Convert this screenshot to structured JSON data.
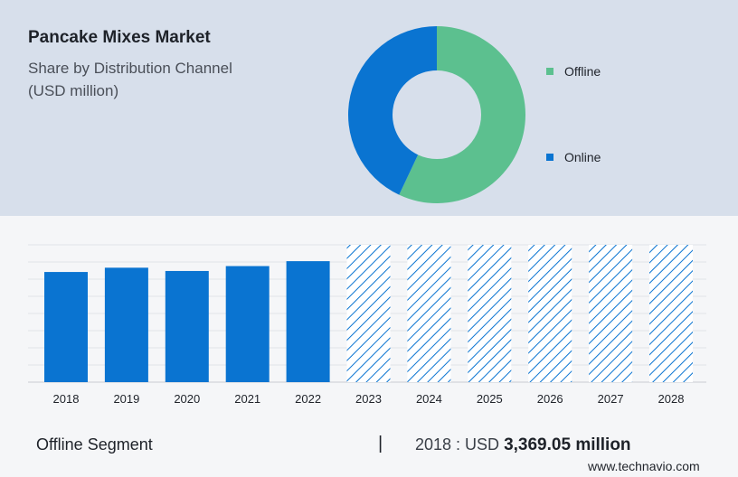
{
  "chart_data": [
    {
      "type": "pie",
      "title": "Pancake Mixes Market",
      "subtitle": "Share by Distribution Channel",
      "unit_line": "(USD million)",
      "slices": [
        {
          "name": "Offline",
          "value": 57,
          "color": "#5cc08f"
        },
        {
          "name": "Online",
          "value": 43,
          "color": "#0a74d1"
        }
      ],
      "legend_position": "right"
    },
    {
      "type": "bar",
      "categories": [
        "2018",
        "2019",
        "2020",
        "2021",
        "2022",
        "2023",
        "2024",
        "2025",
        "2026",
        "2027",
        "2028"
      ],
      "values": [
        3369.05,
        3500,
        3400,
        3550,
        3700,
        null,
        null,
        null,
        null,
        null,
        null
      ],
      "forecast_categories": [
        "2023",
        "2024",
        "2025",
        "2026",
        "2027",
        "2028"
      ],
      "ylim": [
        0,
        4200
      ],
      "grid": true,
      "bar_color": "#0a74d1",
      "forecast_style": "hatched"
    }
  ],
  "footer": {
    "segment": "Offline Segment",
    "separator": "|",
    "year_label": "2018 : USD",
    "value": "3,369.05 million"
  },
  "source": "www.technavio.com"
}
